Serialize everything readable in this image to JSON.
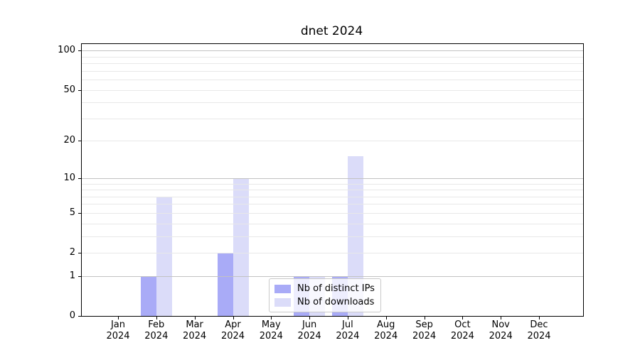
{
  "chart_data": {
    "type": "bar",
    "title": "dnet 2024",
    "categories": [
      "Jan 2024",
      "Feb 2024",
      "Mar 2024",
      "Apr 2024",
      "May 2024",
      "Jun 2024",
      "Jul 2024",
      "Aug 2024",
      "Sep 2024",
      "Oct 2024",
      "Nov 2024",
      "Dec 2024"
    ],
    "series": [
      {
        "name": "Nb of distinct IPs",
        "color": "#a9abf7",
        "values": [
          0,
          1,
          0,
          2,
          0,
          1,
          1,
          0,
          0,
          0,
          0,
          0
        ]
      },
      {
        "name": "Nb of downloads",
        "color": "#dbdcf9",
        "values": [
          0,
          7,
          0,
          10,
          0,
          1,
          15,
          0,
          0,
          0,
          0,
          0
        ]
      }
    ],
    "xlabel": "",
    "ylabel": "",
    "y_ticks": [
      0,
      1,
      2,
      5,
      10,
      20,
      50,
      100
    ],
    "ylim": [
      0,
      112
    ],
    "yscale": "log1p",
    "grid": "horizontal major and minor gridlines",
    "legend_position": "lower-center",
    "colors": {
      "axis": "#000000",
      "major_grid": "#c2c2c2",
      "minor_grid": "#e8e8e8",
      "background": "#ffffff"
    }
  }
}
